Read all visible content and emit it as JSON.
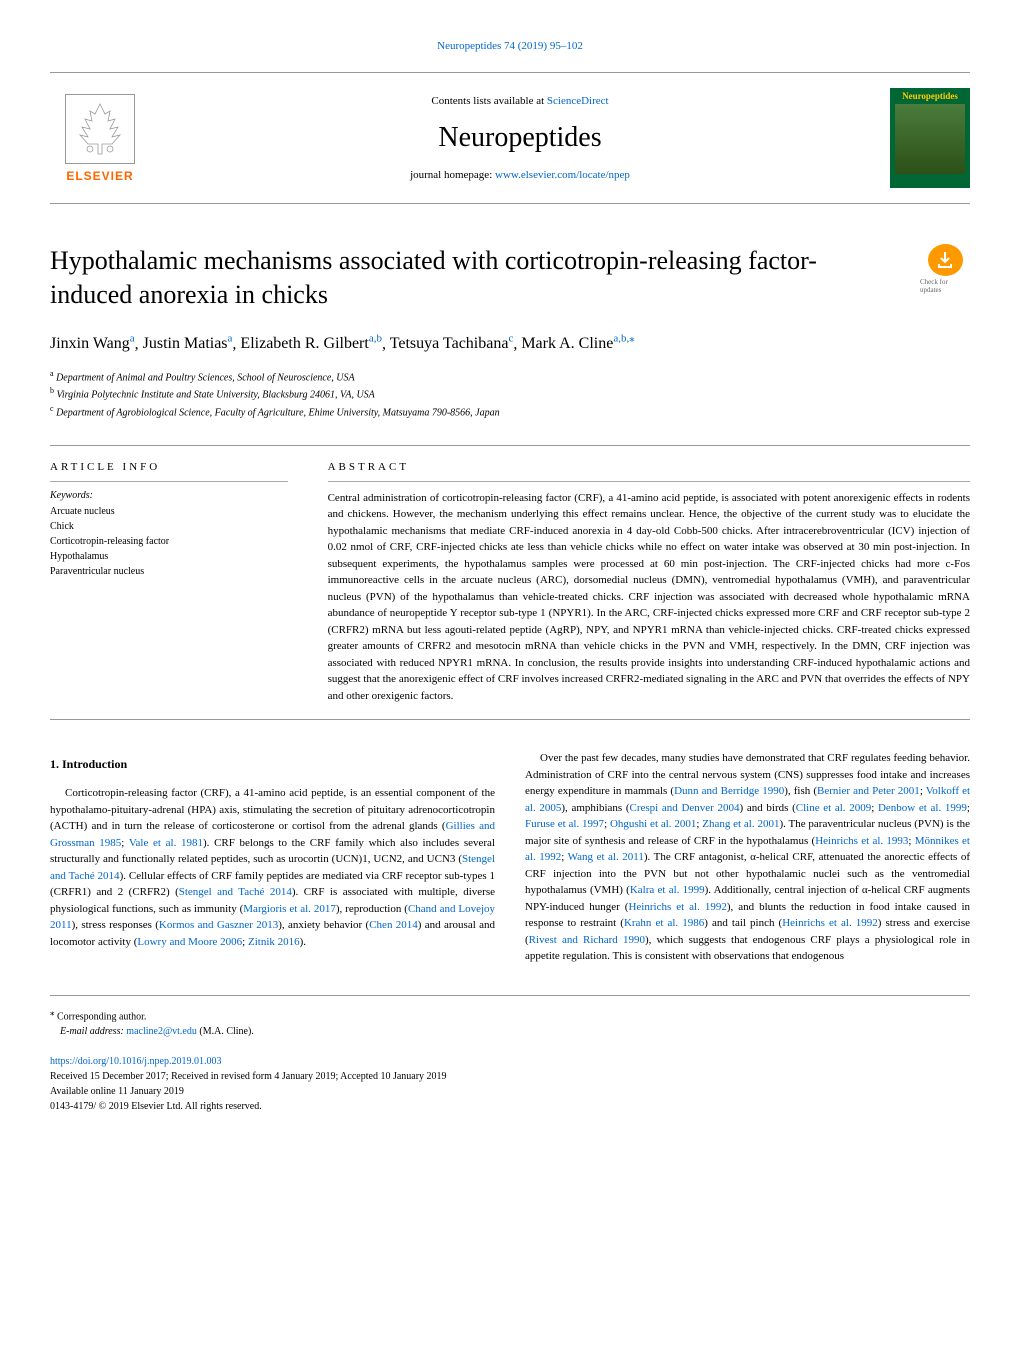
{
  "topLink": {
    "prefix": "",
    "text": "Neuropeptides 74 (2019) 95–102"
  },
  "header": {
    "publisher": "ELSEVIER",
    "contentsPrefix": "Contents lists available at ",
    "contentsLink": "ScienceDirect",
    "journalName": "Neuropeptides",
    "homepagePrefix": "journal homepage: ",
    "homepageLink": "www.elsevier.com/locate/npep",
    "coverTitle": "Neuropeptides"
  },
  "checkUpdates": "Check for updates",
  "title": "Hypothalamic mechanisms associated with corticotropin-releasing factor-induced anorexia in chicks",
  "authors": [
    {
      "name": "Jinxin Wang",
      "affil": "a"
    },
    {
      "name": "Justin Matias",
      "affil": "a"
    },
    {
      "name": "Elizabeth R. Gilbert",
      "affil": "a,b"
    },
    {
      "name": "Tetsuya Tachibana",
      "affil": "c"
    },
    {
      "name": "Mark A. Cline",
      "affil": "a,b,",
      "corresp": true
    }
  ],
  "affiliations": [
    {
      "label": "a",
      "text": "Department of Animal and Poultry Sciences, School of Neuroscience, USA"
    },
    {
      "label": "b",
      "text": "Virginia Polytechnic Institute and State University, Blacksburg 24061, VA, USA"
    },
    {
      "label": "c",
      "text": "Department of Agrobiological Science, Faculty of Agriculture, Ehime University, Matsuyama 790-8566, Japan"
    }
  ],
  "articleInfo": {
    "label": "ARTICLE INFO",
    "keywordsLabel": "Keywords:",
    "keywords": [
      "Arcuate nucleus",
      "Chick",
      "Corticotropin-releasing factor",
      "Hypothalamus",
      "Paraventricular nucleus"
    ]
  },
  "abstract": {
    "label": "ABSTRACT",
    "text": "Central administration of corticotropin-releasing factor (CRF), a 41-amino acid peptide, is associated with potent anorexigenic effects in rodents and chickens. However, the mechanism underlying this effect remains unclear. Hence, the objective of the current study was to elucidate the hypothalamic mechanisms that mediate CRF-induced anorexia in 4 day-old Cobb-500 chicks. After intracerebroventricular (ICV) injection of 0.02 nmol of CRF, CRF-injected chicks ate less than vehicle chicks while no effect on water intake was observed at 30 min post-injection. In subsequent experiments, the hypothalamus samples were processed at 60 min post-injection. The CRF-injected chicks had more c-Fos immunoreactive cells in the arcuate nucleus (ARC), dorsomedial nucleus (DMN), ventromedial hypothalamus (VMH), and paraventricular nucleus (PVN) of the hypothalamus than vehicle-treated chicks. CRF injection was associated with decreased whole hypothalamic mRNA abundance of neuropeptide Y receptor sub-type 1 (NPYR1). In the ARC, CRF-injected chicks expressed more CRF and CRF receptor sub-type 2 (CRFR2) mRNA but less agouti-related peptide (AgRP), NPY, and NPYR1 mRNA than vehicle-injected chicks. CRF-treated chicks expressed greater amounts of CRFR2 and mesotocin mRNA than vehicle chicks in the PVN and VMH, respectively. In the DMN, CRF injection was associated with reduced NPYR1 mRNA. In conclusion, the results provide insights into understanding CRF-induced hypothalamic actions and suggest that the anorexigenic effect of CRF involves increased CRFR2-mediated signaling in the ARC and PVN that overrides the effects of NPY and other orexigenic factors."
  },
  "introduction": {
    "heading": "1. Introduction",
    "para1_a": "Corticotropin-releasing factor (CRF), a 41-amino acid peptide, is an essential component of the hypothalamo-pituitary-adrenal (HPA) axis, stimulating the secretion of pituitary adrenocorticotropin (ACTH) and in turn the release of corticosterone or cortisol from the adrenal glands (",
    "ref1": "Gillies and Grossman 1985",
    "para1_b": "; ",
    "ref2": "Vale et al. 1981",
    "para1_c": "). CRF belongs to the CRF family which also includes several structurally and functionally related peptides, such as urocortin (UCN)1, UCN2, and UCN3 (",
    "ref3": "Stengel and Taché 2014",
    "para1_d": "). Cellular effects of CRF family peptides are mediated via CRF receptor sub-types 1 (CRFR1) and 2 (CRFR2) (",
    "ref4": "Stengel and Taché 2014",
    "para1_e": "). CRF is associated with multiple, diverse physiological functions, such as immunity (",
    "ref5": "Margioris et al. 2017",
    "para1_f": "), reproduction (",
    "ref6": "Chand and Lovejoy 2011",
    "para1_g": "), stress responses (",
    "ref7": "Kormos and Gaszner 2013",
    "para1_h": "), anxiety behavior (",
    "ref8": "Chen 2014",
    "para1_i": ") and arousal and locomotor activity (",
    "ref9": "Lowry and Moore 2006",
    "para1_j": "; ",
    "ref10": "Zitnik 2016",
    "para1_k": ").",
    "para2_a": "Over the past few decades, many studies have demonstrated that CRF regulates feeding behavior. Administration of CRF into the central nervous system (CNS) suppresses food intake and increases energy expenditure in mammals (",
    "ref11": "Dunn and Berridge 1990",
    "para2_b": "), fish (",
    "ref12": "Bernier and Peter 2001",
    "para2_c": "; ",
    "ref13": "Volkoff et al. 2005",
    "para2_d": "), amphibians (",
    "ref14": "Crespi and Denver 2004",
    "para2_e": ") and birds (",
    "ref15": "Cline et al. 2009",
    "para2_f": "; ",
    "ref16": "Denbow et al. 1999",
    "para2_g": "; ",
    "ref17": "Furuse et al. 1997",
    "para2_h": "; ",
    "ref18": "Ohgushi et al. 2001",
    "para2_i": "; ",
    "ref19": "Zhang et al. 2001",
    "para2_j": "). The paraventricular nucleus (PVN) is the major site of synthesis and release of CRF in the hypothalamus (",
    "ref20": "Heinrichs et al. 1993",
    "para2_k": "; ",
    "ref21": "Mönnikes et al. 1992",
    "para2_l": "; ",
    "ref22": "Wang et al. 2011",
    "para2_m": "). The CRF antagonist, α-helical CRF, attenuated the anorectic effects of CRF injection into the PVN but not other hypothalamic nuclei such as the ventromedial hypothalamus (VMH) (",
    "ref23": "Kalra et al. 1999",
    "para2_n": "). Additionally, central injection of α-helical CRF augments NPY-induced hunger (",
    "ref24": "Heinrichs et al. 1992",
    "para2_o": "), and blunts the reduction in food intake caused in response to restraint (",
    "ref25": "Krahn et al. 1986",
    "para2_p": ") and tail pinch (",
    "ref26": "Heinrichs et al. 1992",
    "para2_q": ") stress and exercise (",
    "ref27": "Rivest and Richard 1990",
    "para2_r": "), which suggests that endogenous CRF plays a physiological role in appetite regulation. This is consistent with observations that endogenous"
  },
  "footer": {
    "correspNote": "Corresponding author.",
    "emailLabel": "E-mail address: ",
    "email": "macline2@vt.edu",
    "emailName": " (M.A. Cline).",
    "doi": "https://doi.org/10.1016/j.npep.2019.01.003",
    "received": "Received 15 December 2017; Received in revised form 4 January 2019; Accepted 10 January 2019",
    "available": "Available online 11 January 2019",
    "copyright": "0143-4179/ © 2019 Elsevier Ltd. All rights reserved."
  }
}
